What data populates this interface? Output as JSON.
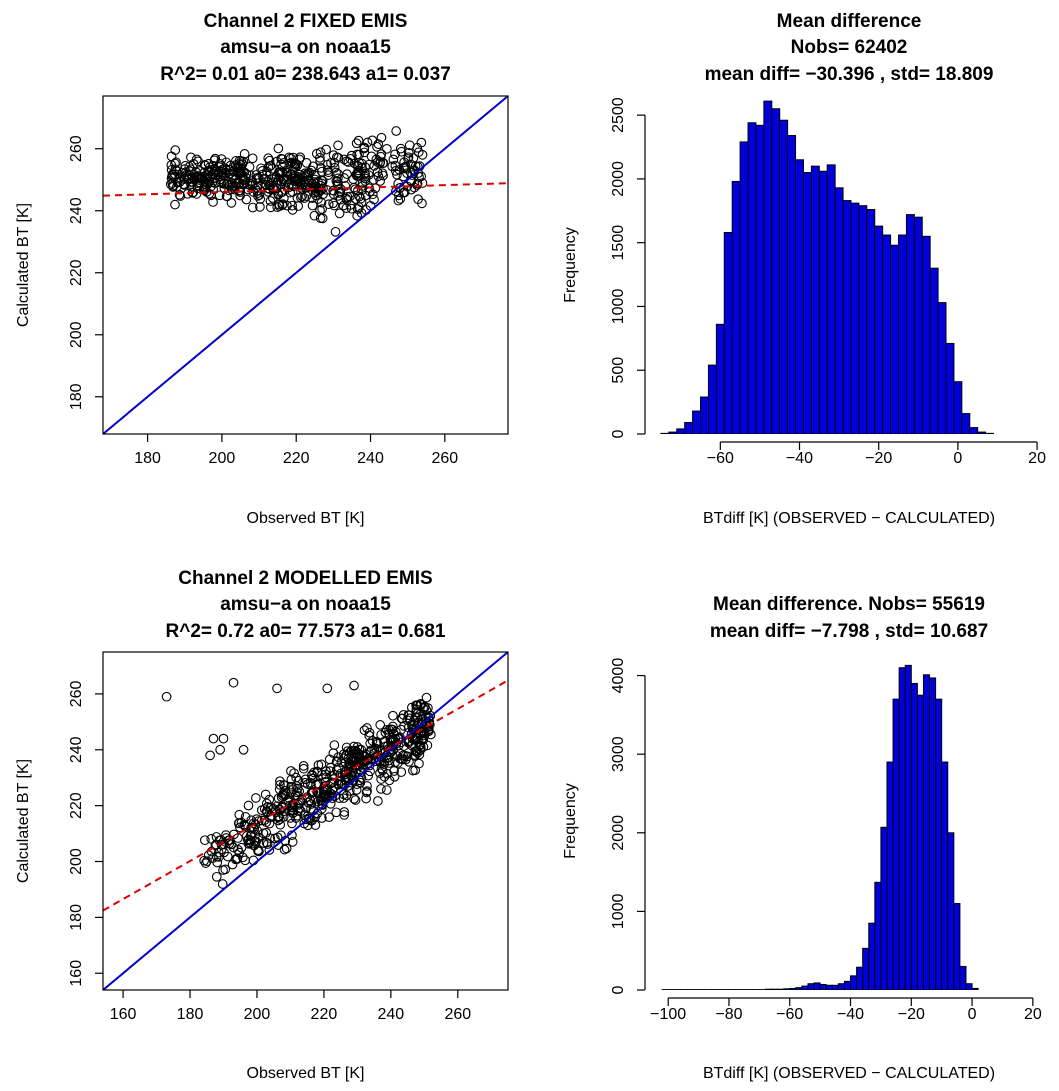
{
  "chart_data": [
    {
      "type": "scatter",
      "title_lines": [
        "Channel 2  FIXED EMIS",
        "amsu−a on noaa15",
        "R^2= 0.01  a0= 238.643  a1= 0.037"
      ],
      "xlabel": "Observed BT [K]",
      "ylabel": "Calculated BT [K]",
      "xlim": [
        168,
        277
      ],
      "ylim": [
        168,
        277
      ],
      "xticks": [
        180,
        200,
        220,
        240,
        260
      ],
      "yticks": [
        180,
        200,
        220,
        240,
        260
      ],
      "xtick_labels": [
        "180",
        "200",
        "220",
        "240",
        "260"
      ],
      "ytick_labels": [
        "180",
        "200",
        "220",
        "240",
        "260"
      ],
      "fit": {
        "a0": 238.643,
        "a1": 0.037,
        "color": "#dd0000",
        "style": "dashed"
      },
      "identity": {
        "color": "#0000cc"
      },
      "seed": 11,
      "clusters": [
        {
          "n": 170,
          "x": [
            186,
            206
          ],
          "y": [
            241,
            260
          ]
        },
        {
          "n": 150,
          "x": [
            204,
            226
          ],
          "y": [
            238,
            262
          ]
        },
        {
          "n": 70,
          "x": [
            215,
            232
          ],
          "y": [
            232,
            264
          ]
        },
        {
          "n": 60,
          "x": [
            226,
            240
          ],
          "y": [
            228,
            270
          ]
        },
        {
          "n": 110,
          "x": [
            236,
            254
          ],
          "y": [
            236,
            268
          ]
        }
      ],
      "grid": false
    },
    {
      "type": "bar",
      "title_lines": [
        "Mean difference",
        "Nobs= 62402",
        "mean diff= −30.396 , std= 18.809"
      ],
      "xlabel": "BTdiff [K] (OBSERVED − CALCULATED)",
      "ylabel": "Frequency",
      "xlim": [
        -77,
        22
      ],
      "ylim": [
        0,
        2650
      ],
      "xticks": [
        -60,
        -40,
        -20,
        0,
        20
      ],
      "yticks": [
        0,
        500,
        1000,
        1500,
        2000,
        2500
      ],
      "xtick_labels": [
        "−60",
        "−40",
        "−20",
        "0",
        "20"
      ],
      "ytick_labels": [
        "0",
        "500",
        "1000",
        "1500",
        "2000",
        "2500"
      ],
      "bin_start": -75,
      "bin_width": 2,
      "values": [
        5,
        15,
        40,
        90,
        180,
        290,
        540,
        860,
        1580,
        1980,
        2290,
        2440,
        2420,
        2610,
        2550,
        2460,
        2340,
        2150,
        2050,
        2100,
        2060,
        2110,
        1930,
        1830,
        1810,
        1790,
        1760,
        1630,
        1560,
        1480,
        1560,
        1720,
        1700,
        1550,
        1300,
        1030,
        710,
        410,
        160,
        50,
        15,
        5
      ],
      "bar_color": "#0000dd",
      "grid": false
    },
    {
      "type": "scatter",
      "title_lines": [
        "Channel 2   MODELLED EMIS",
        "amsu−a on noaa15",
        "R^2= 0.72  a0= 77.573  a1= 0.681"
      ],
      "xlabel": "Observed BT [K]",
      "ylabel": "Calculated BT [K]",
      "xlim": [
        154,
        275
      ],
      "ylim": [
        154,
        275
      ],
      "xticks": [
        160,
        180,
        200,
        220,
        240,
        260
      ],
      "yticks": [
        160,
        180,
        200,
        220,
        240,
        260
      ],
      "xtick_labels": [
        "160",
        "180",
        "200",
        "220",
        "240",
        "260"
      ],
      "ytick_labels": [
        "160",
        "180",
        "200",
        "220",
        "240",
        "260"
      ],
      "fit": {
        "a0": 77.573,
        "a1": 0.681,
        "color": "#dd0000",
        "style": "dashed"
      },
      "identity": {
        "color": "#0000cc"
      },
      "seed": 29,
      "trend": {
        "n": 560,
        "x": [
          182,
          252
        ],
        "intercept": 68,
        "slope": 0.72,
        "spread": 7
      },
      "extra_points": [
        [
          173,
          259
        ],
        [
          193,
          264
        ],
        [
          206,
          262
        ],
        [
          221,
          262
        ],
        [
          229,
          263
        ],
        [
          187,
          244
        ],
        [
          190,
          244
        ],
        [
          186,
          238
        ],
        [
          189,
          240
        ],
        [
          196,
          240
        ]
      ],
      "grid": false
    },
    {
      "type": "bar",
      "title_lines": [
        "Mean difference. Nobs= 55619",
        "mean diff= −7.798 , std= 10.687"
      ],
      "xlabel": "BTdiff [K] (OBSERVED − CALCULATED)",
      "ylabel": "Frequency",
      "xlim": [
        -105,
        24
      ],
      "ylim": [
        0,
        4300
      ],
      "xticks": [
        -100,
        -80,
        -60,
        -40,
        -20,
        0,
        20
      ],
      "yticks": [
        0,
        1000,
        2000,
        3000,
        4000
      ],
      "xtick_labels": [
        "−100",
        "−80",
        "−60",
        "−40",
        "−20",
        "0",
        "20"
      ],
      "ytick_labels": [
        "0",
        "1000",
        "2000",
        "3000",
        "4000"
      ],
      "bin_start": -102,
      "bin_width": 2,
      "values": [
        5,
        5,
        5,
        5,
        5,
        5,
        5,
        5,
        5,
        5,
        5,
        5,
        5,
        5,
        5,
        5,
        5,
        10,
        10,
        10,
        15,
        20,
        30,
        50,
        80,
        90,
        70,
        60,
        60,
        80,
        110,
        180,
        290,
        530,
        850,
        1370,
        2070,
        2900,
        3700,
        4100,
        4130,
        3900,
        3750,
        4010,
        3970,
        3700,
        2900,
        2000,
        1100,
        300,
        80,
        20
      ],
      "bar_color": "#0000dd",
      "grid": false
    }
  ]
}
